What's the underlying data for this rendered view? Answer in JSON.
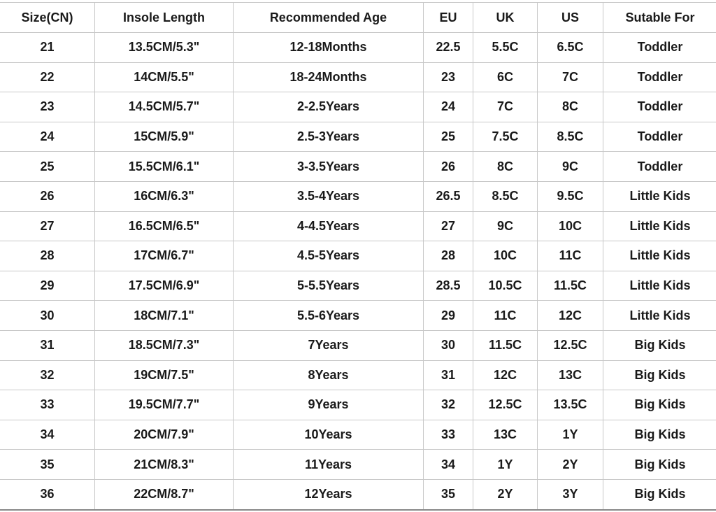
{
  "headers": [
    "Size(CN)",
    "Insole Length",
    "Recommended Age",
    "EU",
    "UK",
    "US",
    "Sutable For"
  ],
  "rows": [
    [
      "21",
      "13.5CM/5.3\"",
      "12-18Months",
      "22.5",
      "5.5C",
      "6.5C",
      "Toddler"
    ],
    [
      "22",
      "14CM/5.5\"",
      "18-24Months",
      "23",
      "6C",
      "7C",
      "Toddler"
    ],
    [
      "23",
      "14.5CM/5.7\"",
      "2-2.5Years",
      "24",
      "7C",
      "8C",
      "Toddler"
    ],
    [
      "24",
      "15CM/5.9\"",
      "2.5-3Years",
      "25",
      "7.5C",
      "8.5C",
      "Toddler"
    ],
    [
      "25",
      "15.5CM/6.1\"",
      "3-3.5Years",
      "26",
      "8C",
      "9C",
      "Toddler"
    ],
    [
      "26",
      "16CM/6.3\"",
      "3.5-4Years",
      "26.5",
      "8.5C",
      "9.5C",
      "Little Kids"
    ],
    [
      "27",
      "16.5CM/6.5\"",
      "4-4.5Years",
      "27",
      "9C",
      "10C",
      "Little Kids"
    ],
    [
      "28",
      "17CM/6.7\"",
      "4.5-5Years",
      "28",
      "10C",
      "11C",
      "Little Kids"
    ],
    [
      "29",
      "17.5CM/6.9\"",
      "5-5.5Years",
      "28.5",
      "10.5C",
      "11.5C",
      "Little Kids"
    ],
    [
      "30",
      "18CM/7.1\"",
      "5.5-6Years",
      "29",
      "11C",
      "12C",
      "Little Kids"
    ],
    [
      "31",
      "18.5CM/7.3\"",
      "7Years",
      "30",
      "11.5C",
      "12.5C",
      "Big Kids"
    ],
    [
      "32",
      "19CM/7.5\"",
      "8Years",
      "31",
      "12C",
      "13C",
      "Big Kids"
    ],
    [
      "33",
      "19.5CM/7.7\"",
      "9Years",
      "32",
      "12.5C",
      "13.5C",
      "Big Kids"
    ],
    [
      "34",
      "20CM/7.9\"",
      "10Years",
      "33",
      "13C",
      "1Y",
      "Big Kids"
    ],
    [
      "35",
      "21CM/8.3\"",
      "11Years",
      "34",
      "1Y",
      "2Y",
      "Big Kids"
    ],
    [
      "36",
      "22CM/8.7\"",
      "12Years",
      "35",
      "2Y",
      "3Y",
      "Big Kids"
    ]
  ]
}
